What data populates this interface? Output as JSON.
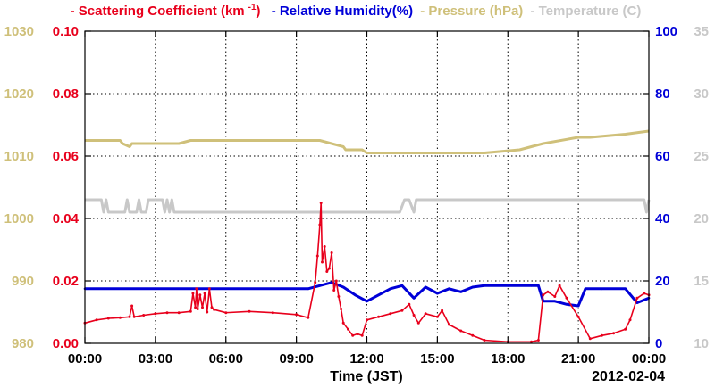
{
  "chart_data": {
    "type": "line",
    "xlabel": "Time (JST)",
    "date_label": "2012-02-04",
    "x_tick_labels": [
      "00:00",
      "03:00",
      "06:00",
      "09:00",
      "12:00",
      "15:00",
      "18:00",
      "21:00",
      "00:00"
    ],
    "x_range_hours": [
      0,
      24
    ],
    "grid": true,
    "legend_placement": "top",
    "axes": {
      "scattering": {
        "range": [
          0,
          0.1
        ],
        "ticks": [
          "0.00",
          "0.02",
          "0.04",
          "0.06",
          "0.08",
          "0.10"
        ],
        "color": "#e8001c",
        "side": "left-inner"
      },
      "pressure": {
        "range": [
          980,
          1030
        ],
        "ticks": [
          "980",
          "990",
          "1000",
          "1010",
          "1020",
          "1030"
        ],
        "color": "#cfc07a",
        "side": "left-outer"
      },
      "humidity": {
        "range": [
          0,
          100
        ],
        "ticks": [
          "0",
          "20",
          "40",
          "60",
          "80",
          "100"
        ],
        "color": "#0000d8",
        "side": "right-inner"
      },
      "temperature": {
        "range": [
          10,
          35
        ],
        "ticks": [
          "10",
          "15",
          "20",
          "25",
          "30",
          "35"
        ],
        "color": "#c8c8c8",
        "side": "right-outer"
      }
    },
    "series": [
      {
        "name": "Scattering Coefficient",
        "name_prefix": "- Scattering Coefficient (km",
        "name_sup": "-1",
        "name_suffix": ")",
        "axis": "scattering",
        "color": "#e8001c",
        "x": [
          0,
          0.5,
          1.0,
          1.5,
          1.9,
          2.0,
          2.1,
          2.5,
          3.0,
          3.5,
          4.0,
          4.5,
          4.6,
          4.7,
          4.75,
          4.8,
          4.9,
          5.0,
          5.1,
          5.2,
          5.3,
          5.4,
          5.5,
          6.0,
          7.0,
          8.0,
          9.0,
          9.5,
          9.8,
          9.9,
          10.0,
          10.05,
          10.1,
          10.2,
          10.3,
          10.4,
          10.5,
          10.6,
          10.7,
          10.8,
          10.9,
          11.0,
          11.2,
          11.4,
          11.6,
          11.8,
          12.0,
          12.5,
          13.0,
          13.5,
          13.8,
          14.0,
          14.2,
          14.5,
          15.0,
          15.2,
          15.5,
          16.0,
          16.5,
          17.0,
          18.0,
          19.0,
          19.3,
          19.5,
          19.7,
          20.0,
          20.2,
          20.5,
          21.0,
          21.5,
          22.0,
          22.5,
          23.0,
          23.2,
          23.5,
          23.8,
          24.0
        ],
        "values": [
          0.0065,
          0.0075,
          0.008,
          0.0082,
          0.0085,
          0.012,
          0.0085,
          0.009,
          0.0095,
          0.0098,
          0.0098,
          0.0102,
          0.016,
          0.0115,
          0.0175,
          0.011,
          0.0155,
          0.0115,
          0.016,
          0.01,
          0.0175,
          0.0115,
          0.0108,
          0.0098,
          0.0102,
          0.0098,
          0.0092,
          0.0082,
          0.0195,
          0.028,
          0.038,
          0.045,
          0.026,
          0.031,
          0.023,
          0.024,
          0.029,
          0.017,
          0.02,
          0.015,
          0.011,
          0.0065,
          0.0045,
          0.0025,
          0.003,
          0.0025,
          0.0075,
          0.0085,
          0.0095,
          0.0105,
          0.0125,
          0.009,
          0.0065,
          0.0095,
          0.0085,
          0.0105,
          0.006,
          0.004,
          0.0025,
          0.001,
          0.0005,
          0.0005,
          0.001,
          0.0155,
          0.0165,
          0.015,
          0.0185,
          0.0145,
          0.0085,
          0.0015,
          0.0025,
          0.0032,
          0.0045,
          0.0075,
          0.0145,
          0.016,
          0.0155
        ]
      },
      {
        "name": "Relative Humidity",
        "name_label": "- Relative Humidity(%)",
        "axis": "humidity",
        "color": "#0000d8",
        "x": [
          0,
          5.0,
          9.5,
          10.0,
          10.5,
          11.0,
          11.5,
          12.0,
          12.5,
          13.0,
          13.5,
          14.0,
          14.5,
          15.0,
          15.5,
          16.0,
          16.5,
          17.0,
          18.0,
          19.0,
          19.3,
          19.5,
          20.0,
          20.5,
          21.0,
          21.3,
          22.0,
          23.0,
          23.5,
          24.0
        ],
        "values": [
          17.5,
          17.5,
          17.5,
          18.5,
          19.5,
          18.0,
          15.5,
          13.5,
          15.5,
          17.5,
          18.5,
          14.5,
          18.0,
          16.0,
          17.5,
          16.5,
          18.0,
          18.5,
          18.5,
          18.5,
          18.5,
          13.5,
          13.5,
          12.5,
          12.0,
          17.5,
          17.5,
          17.5,
          13.0,
          14.5
        ]
      },
      {
        "name": "Pressure",
        "name_label": "- Pressure (hPa)",
        "axis": "pressure",
        "color": "#cfc07a",
        "x": [
          0,
          1.5,
          1.6,
          1.9,
          2.0,
          2.5,
          3.0,
          4.0,
          4.5,
          5.0,
          8.0,
          9.0,
          10.0,
          11.0,
          11.1,
          11.8,
          12.0,
          13.0,
          15.0,
          17.0,
          18.5,
          19.0,
          19.5,
          21.0,
          21.5,
          23.0,
          24.0
        ],
        "values": [
          1012.5,
          1012.5,
          1012.0,
          1011.5,
          1012.0,
          1012.0,
          1012.0,
          1012.0,
          1012.5,
          1012.5,
          1012.5,
          1012.5,
          1012.5,
          1011.5,
          1011.0,
          1011.0,
          1010.5,
          1010.5,
          1010.5,
          1010.5,
          1011.0,
          1011.5,
          1012.0,
          1013.0,
          1013.0,
          1013.5,
          1014.0
        ]
      },
      {
        "name": "Temperature",
        "name_label": "- Temperature (C)",
        "axis": "temperature",
        "color": "#c8c8c8",
        "x": [
          0,
          0.7,
          0.8,
          0.9,
          1.0,
          1.7,
          1.8,
          1.9,
          2.2,
          2.3,
          2.4,
          2.6,
          2.7,
          3.3,
          3.4,
          3.5,
          3.6,
          3.7,
          3.8,
          13.4,
          13.6,
          13.8,
          14.0,
          14.1,
          14.2,
          23.8,
          23.9,
          24.0
        ],
        "values": [
          21.5,
          21.5,
          20.5,
          21.5,
          20.5,
          20.5,
          21.5,
          20.5,
          20.5,
          21.5,
          20.5,
          20.5,
          21.5,
          21.5,
          20.5,
          21.5,
          20.5,
          21.5,
          20.5,
          20.5,
          21.5,
          21.5,
          20.5,
          21.5,
          21.5,
          21.5,
          20.5,
          21.5
        ]
      }
    ]
  }
}
